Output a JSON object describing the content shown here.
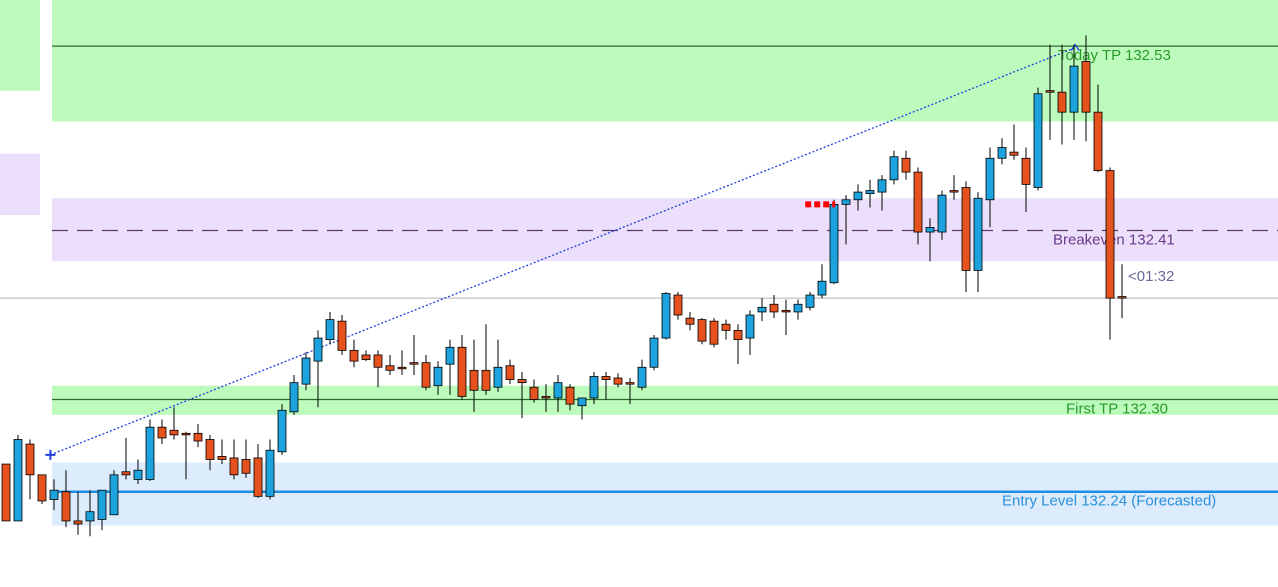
{
  "chart_data": {
    "type": "candlestick",
    "ylim": [
      132.178,
      132.56
    ],
    "up_color": "#1ca3dd",
    "down_color": "#e5521d",
    "open": [
      132.258,
      132.221,
      132.271,
      132.251,
      132.235,
      132.24,
      132.221,
      132.221,
      132.222,
      132.225,
      132.253,
      132.248,
      132.248,
      132.282,
      132.28,
      132.278,
      132.278,
      132.274,
      132.263,
      132.262,
      132.261,
      132.262,
      132.237,
      132.266,
      132.292,
      132.31,
      132.325,
      132.339,
      132.351,
      132.332,
      132.329,
      132.329,
      132.322,
      132.321,
      132.324,
      132.324,
      132.309,
      132.323,
      132.334,
      132.319,
      132.319,
      132.308,
      132.322,
      132.313,
      132.308,
      132.302,
      132.301,
      132.308,
      132.296,
      132.301,
      132.315,
      132.314,
      132.311,
      132.308,
      132.321,
      132.34,
      132.368,
      132.353,
      132.352,
      132.351,
      132.349,
      132.345,
      132.34,
      132.357,
      132.362,
      132.358,
      132.357,
      132.36,
      132.368,
      132.376,
      132.427,
      132.43,
      132.434,
      132.435,
      132.443,
      132.457,
      132.448,
      132.409,
      132.409,
      132.436,
      132.438,
      132.384,
      132.43,
      132.457,
      132.461,
      132.457,
      132.438,
      132.501,
      132.5,
      132.487,
      132.52,
      132.487,
      132.449,
      132.367
    ],
    "high": [
      132.258,
      132.277,
      132.274,
      132.251,
      132.248,
      132.254,
      132.24,
      132.241,
      132.241,
      132.254,
      132.275,
      132.261,
      132.287,
      132.287,
      132.295,
      132.279,
      132.284,
      132.277,
      132.274,
      132.274,
      132.274,
      132.271,
      132.274,
      132.297,
      132.316,
      132.331,
      132.345,
      132.357,
      132.355,
      132.339,
      132.332,
      132.332,
      132.329,
      132.332,
      132.342,
      132.329,
      132.325,
      132.339,
      132.342,
      132.339,
      132.349,
      132.339,
      132.326,
      132.318,
      132.313,
      132.31,
      132.316,
      132.31,
      132.301,
      132.318,
      132.318,
      132.317,
      132.314,
      132.326,
      132.342,
      132.37,
      132.37,
      132.357,
      132.353,
      132.353,
      132.352,
      132.349,
      132.358,
      132.366,
      132.368,
      132.365,
      132.365,
      132.37,
      132.388,
      132.43,
      132.433,
      132.44,
      132.443,
      132.446,
      132.462,
      132.462,
      132.451,
      132.418,
      132.436,
      132.446,
      132.442,
      132.435,
      132.464,
      132.47,
      132.479,
      132.464,
      132.503,
      132.531,
      132.531,
      132.531,
      132.537,
      132.505,
      132.451,
      132.388
    ],
    "low": [
      132.221,
      132.221,
      132.235,
      132.232,
      132.228,
      132.217,
      132.212,
      132.211,
      132.215,
      132.225,
      132.248,
      132.245,
      132.247,
      132.271,
      132.274,
      132.248,
      132.269,
      132.254,
      132.258,
      132.248,
      132.249,
      132.236,
      132.235,
      132.264,
      132.29,
      132.306,
      132.295,
      132.336,
      132.329,
      132.321,
      132.325,
      132.308,
      132.316,
      132.316,
      132.316,
      132.306,
      132.303,
      132.303,
      132.3,
      132.292,
      132.303,
      132.305,
      132.31,
      132.288,
      132.298,
      132.292,
      132.292,
      132.293,
      132.287,
      132.297,
      132.3,
      132.308,
      132.297,
      132.306,
      132.319,
      132.339,
      132.352,
      132.345,
      132.336,
      132.334,
      132.339,
      132.323,
      132.329,
      132.351,
      132.353,
      132.342,
      132.352,
      132.358,
      132.366,
      132.375,
      132.401,
      132.423,
      132.425,
      132.423,
      132.44,
      132.443,
      132.401,
      132.39,
      132.404,
      132.43,
      132.37,
      132.37,
      132.412,
      132.453,
      132.456,
      132.422,
      132.436,
      132.469,
      132.466,
      132.469,
      132.468,
      132.448,
      132.339,
      132.353
    ],
    "close": [
      132.221,
      132.274,
      132.251,
      132.234,
      132.241,
      132.221,
      132.219,
      132.227,
      132.241,
      132.251,
      132.251,
      132.254,
      132.282,
      132.275,
      132.277,
      132.277,
      132.273,
      132.261,
      132.261,
      132.251,
      132.252,
      132.237,
      132.267,
      132.293,
      132.311,
      132.327,
      132.34,
      132.352,
      132.332,
      132.325,
      132.326,
      132.321,
      132.319,
      132.32,
      132.323,
      132.308,
      132.321,
      132.334,
      132.302,
      132.306,
      132.306,
      132.321,
      132.313,
      132.311,
      132.3,
      132.301,
      132.311,
      132.297,
      132.301,
      132.315,
      132.313,
      132.31,
      132.31,
      132.321,
      132.34,
      132.369,
      132.355,
      132.349,
      132.338,
      132.336,
      132.345,
      132.339,
      132.355,
      132.36,
      132.357,
      132.357,
      132.362,
      132.368,
      132.377,
      132.427,
      132.43,
      132.435,
      132.436,
      132.443,
      132.458,
      132.448,
      132.409,
      132.412,
      132.433,
      132.435,
      132.384,
      132.431,
      132.457,
      132.464,
      132.459,
      132.44,
      132.499,
      132.5,
      132.487,
      132.517,
      132.487,
      132.449,
      132.366,
      132.366
    ],
    "zones": [
      {
        "range": [
          132.481,
          132.56
        ],
        "color": "#bdfbbd",
        "region": "main"
      },
      {
        "range": [
          132.39,
          132.431
        ],
        "color": "#ecdffc",
        "region": "main"
      },
      {
        "range": [
          132.29,
          132.309
        ],
        "color": "#bdfbbd",
        "region": "main"
      },
      {
        "range": [
          132.218,
          132.259
        ],
        "color": "#dcecfc",
        "region": "main"
      },
      {
        "range": [
          132.501,
          132.56
        ],
        "color": "#bdfbbd",
        "region": "left"
      },
      {
        "range": [
          132.42,
          132.46
        ],
        "color": "#ecdffc",
        "region": "left"
      }
    ],
    "levels": [
      {
        "label": "Today TP 132.53",
        "value": 132.53,
        "color": "#2f6b2f",
        "text_color": "#2a9a2a",
        "style": "solid"
      },
      {
        "label": "Breakeven 132.41",
        "value": 132.41,
        "color": "#5a3a6a",
        "text_color": "#6a3a8a",
        "style": "dashed"
      },
      {
        "label": "First TP 132.30",
        "value": 132.3,
        "color": "#2f6b2f",
        "text_color": "#2a9a2a",
        "style": "solid"
      },
      {
        "label": "Entry Level 132.24 (Forecasted)",
        "value": 132.24,
        "color": "#1e8fe0",
        "text_color": "#2b8fdc",
        "style": "thick"
      }
    ],
    "current_price": 132.366,
    "timer": "<01:32",
    "trend_line": {
      "from": [
        3.7,
        132.264
      ],
      "to": [
        89.1,
        132.529
      ],
      "color": "#1f3fe0"
    },
    "signal_marker": {
      "value": 132.427,
      "from": 66.6,
      "to": 69.1,
      "color": "#ff0000"
    }
  }
}
